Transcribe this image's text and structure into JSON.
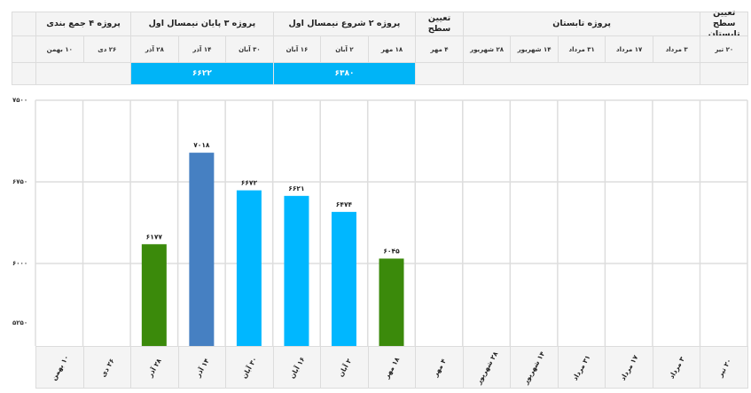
{
  "header": {
    "groups": [
      {
        "label": "تعیین سطح تابستان",
        "span": 1
      },
      {
        "label": "پروژه تابستان",
        "span": 5
      },
      {
        "label": "تعیین سطح",
        "span": 1
      },
      {
        "label": "پروژه ۲ شروع نیمسال اول",
        "span": 3
      },
      {
        "label": "پروژه ۳ پایان نیمسال اول",
        "span": 3
      },
      {
        "label": "پروژه ۴ جمع بندی",
        "span": 2
      }
    ],
    "averages": [
      {
        "value": "",
        "span": 1
      },
      {
        "value": "",
        "span": 5
      },
      {
        "value": "",
        "span": 1
      },
      {
        "value": "۶۳۸۰",
        "span": 3,
        "highlight": true
      },
      {
        "value": "۶۶۲۲",
        "span": 3,
        "highlight": true
      },
      {
        "value": "",
        "span": 2
      }
    ]
  },
  "colors": {
    "green": "#3b8a0b",
    "dark_blue": "#4680c2",
    "light_blue": "#00b7ff",
    "average_fill": "#00b4f7",
    "grid": "#dddddd"
  },
  "chart_data": {
    "type": "bar",
    "direction": "rtl",
    "categories": [
      "۲۰ تیر",
      "۳ مرداد",
      "۱۷ مرداد",
      "۳۱ مرداد",
      "۱۴ شهریور",
      "۲۸ شهریور",
      "۴ مهر",
      "۱۸ مهر",
      "۲ آبان",
      "۱۶ آبان",
      "۳۰ آبان",
      "۱۴ آذر",
      "۲۸ آذر",
      "۲۶ دی",
      "۱۰ بهمن"
    ],
    "values": [
      null,
      null,
      null,
      null,
      null,
      null,
      null,
      6045,
      6474,
      6621,
      6672,
      7018,
      6177,
      null,
      null
    ],
    "value_labels": [
      "",
      "",
      "",
      "",
      "",
      "",
      "",
      "۶۰۴۵",
      "۶۴۷۴",
      "۶۶۲۱",
      "۶۶۷۲",
      "۷۰۱۸",
      "۶۱۷۷",
      "",
      ""
    ],
    "bar_colors": [
      "",
      "",
      "",
      "",
      "",
      "",
      "",
      "green",
      "light_blue",
      "light_blue",
      "light_blue",
      "dark_blue",
      "green",
      "",
      ""
    ],
    "yticks": [
      7500,
      6750,
      6000,
      5250
    ],
    "ytick_labels": [
      "۷۵۰۰",
      "۶۷۵۰",
      "۶۰۰۰",
      "۵۲۵۰"
    ],
    "ylim": [
      5250,
      7500
    ],
    "grid": true,
    "legend": "none"
  }
}
